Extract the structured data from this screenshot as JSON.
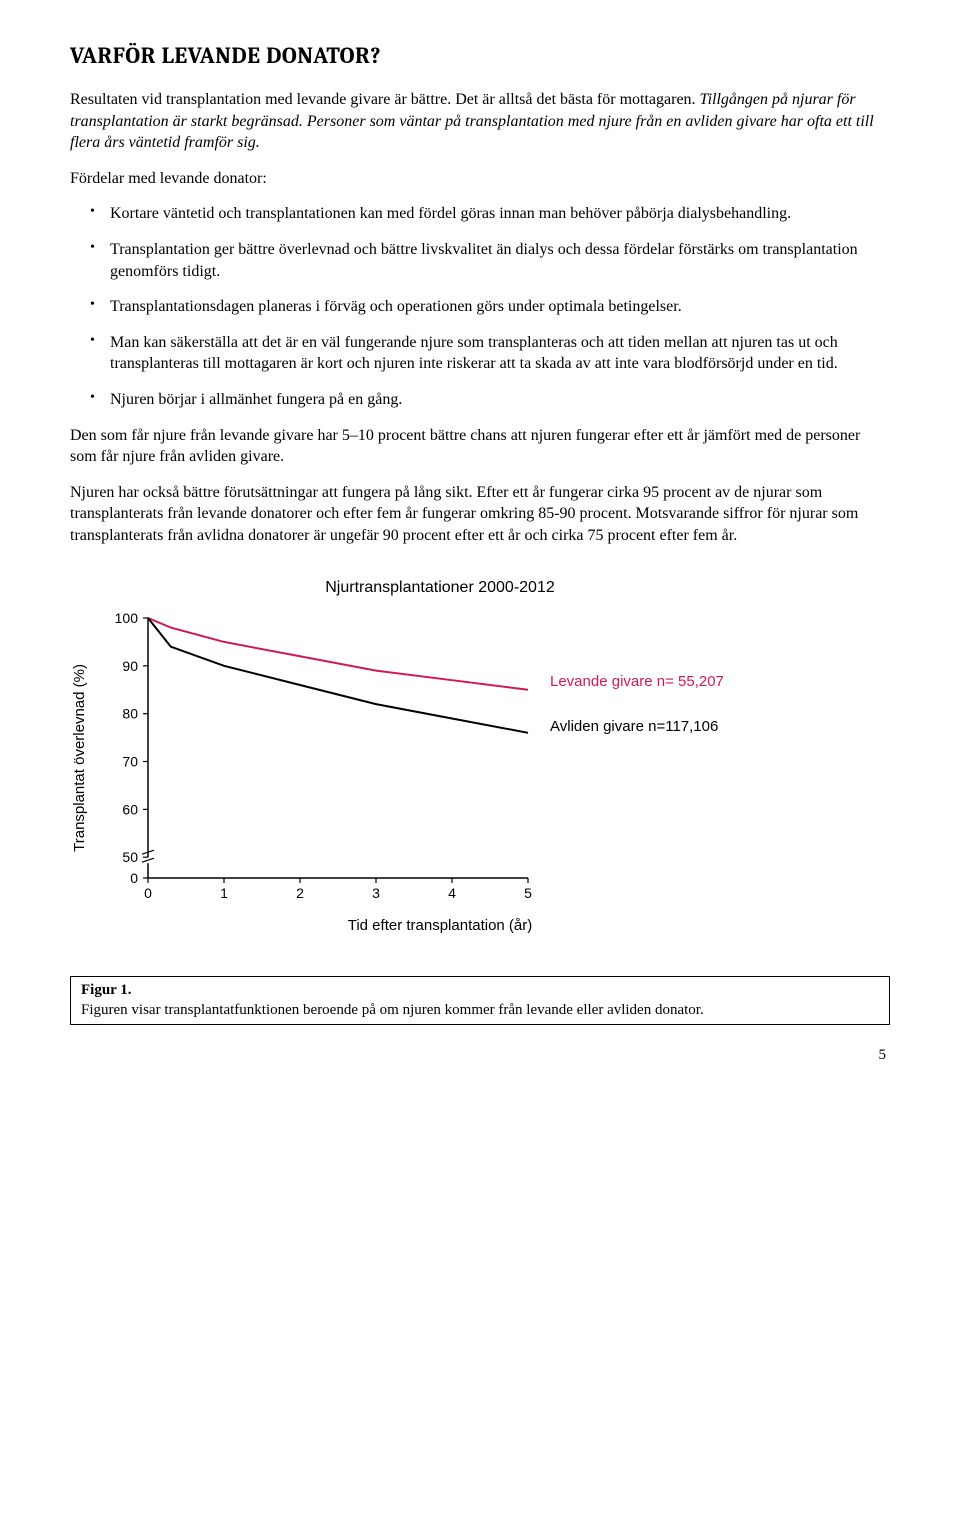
{
  "title": "VARFÖR LEVANDE DONATOR?",
  "intro1": "Resultaten vid transplantation med levande givare är bättre. Det är alltså det bästa för mottagaren. ",
  "intro1_italic": "Tillgången på njurar för transplantation är starkt begränsad. Personer som väntar på transplantation med njure från en avliden givare har ofta ett till flera års väntetid framför sig.",
  "listHeader": "Fördelar med levande donator:",
  "bullets": [
    "Kortare väntetid och transplantationen kan med fördel göras innan man behöver påbörja dialysbehandling.",
    "Transplantation ger bättre överlevnad och bättre livskvalitet än dialys och dessa fördelar förstärks om transplantation genomförs tidigt.",
    "Transplantationsdagen planeras i förväg och operationen görs under optimala betingelser.",
    "Man kan säkerställa att det är en väl fungerande njure som transplanteras och att tiden mellan att njuren tas ut och transplanteras till mottagaren är kort och njuren inte riskerar att ta skada av att inte vara blodförsörjd under en tid.",
    "Njuren börjar i allmänhet fungera på en gång."
  ],
  "para2": "Den som får njure från levande givare har 5–10 procent bättre chans att njuren fungerar efter ett år jämfört med de personer som får njure från avliden givare.",
  "para3": "Njuren har också bättre förutsättningar att fungera på lång sikt. Efter ett år fungerar cirka 95 procent av de njurar som transplanterats från levande donatorer och efter fem år fungerar omkring 85-90 procent. Motsvarande siffror för njurar som transplanterats från avlidna donatorer är ungefär 90 procent efter ett år och cirka 75 procent efter fem år.",
  "chart": {
    "title": "Njurtransplantationer 2000-2012",
    "ylabel": "Transplantat överlevnad (%)",
    "xlabel": "Tid efter transplantation (år)",
    "xTicks": [
      "0",
      "1",
      "2",
      "3",
      "4",
      "5"
    ],
    "yTicks": [
      "0",
      "50",
      "60",
      "70",
      "80",
      "90",
      "100"
    ],
    "xlim": [
      0,
      5
    ],
    "seriesA": {
      "label": "Levande givare  n= 55,207",
      "color": "#d1175b",
      "points": [
        [
          0,
          100
        ],
        [
          0.3,
          98
        ],
        [
          1,
          95
        ],
        [
          2,
          92
        ],
        [
          3,
          89
        ],
        [
          4,
          87
        ],
        [
          5,
          85
        ]
      ]
    },
    "seriesB": {
      "label": "Avliden givare   n=117,106",
      "color": "#000000",
      "points": [
        [
          0,
          100
        ],
        [
          0.3,
          94
        ],
        [
          1,
          90
        ],
        [
          2,
          86
        ],
        [
          3,
          82
        ],
        [
          4,
          79
        ],
        [
          5,
          76
        ]
      ]
    },
    "axisColor": "#000000",
    "bg": "#ffffff",
    "lineWidth": 2,
    "legendA_color": "#d1175b",
    "legendB_color": "#000000"
  },
  "caption": {
    "label": "Figur 1.",
    "text": "Figuren visar transplantatfunktionen beroende på om njuren kommer från levande eller avliden donator."
  },
  "pageNumber": "5"
}
